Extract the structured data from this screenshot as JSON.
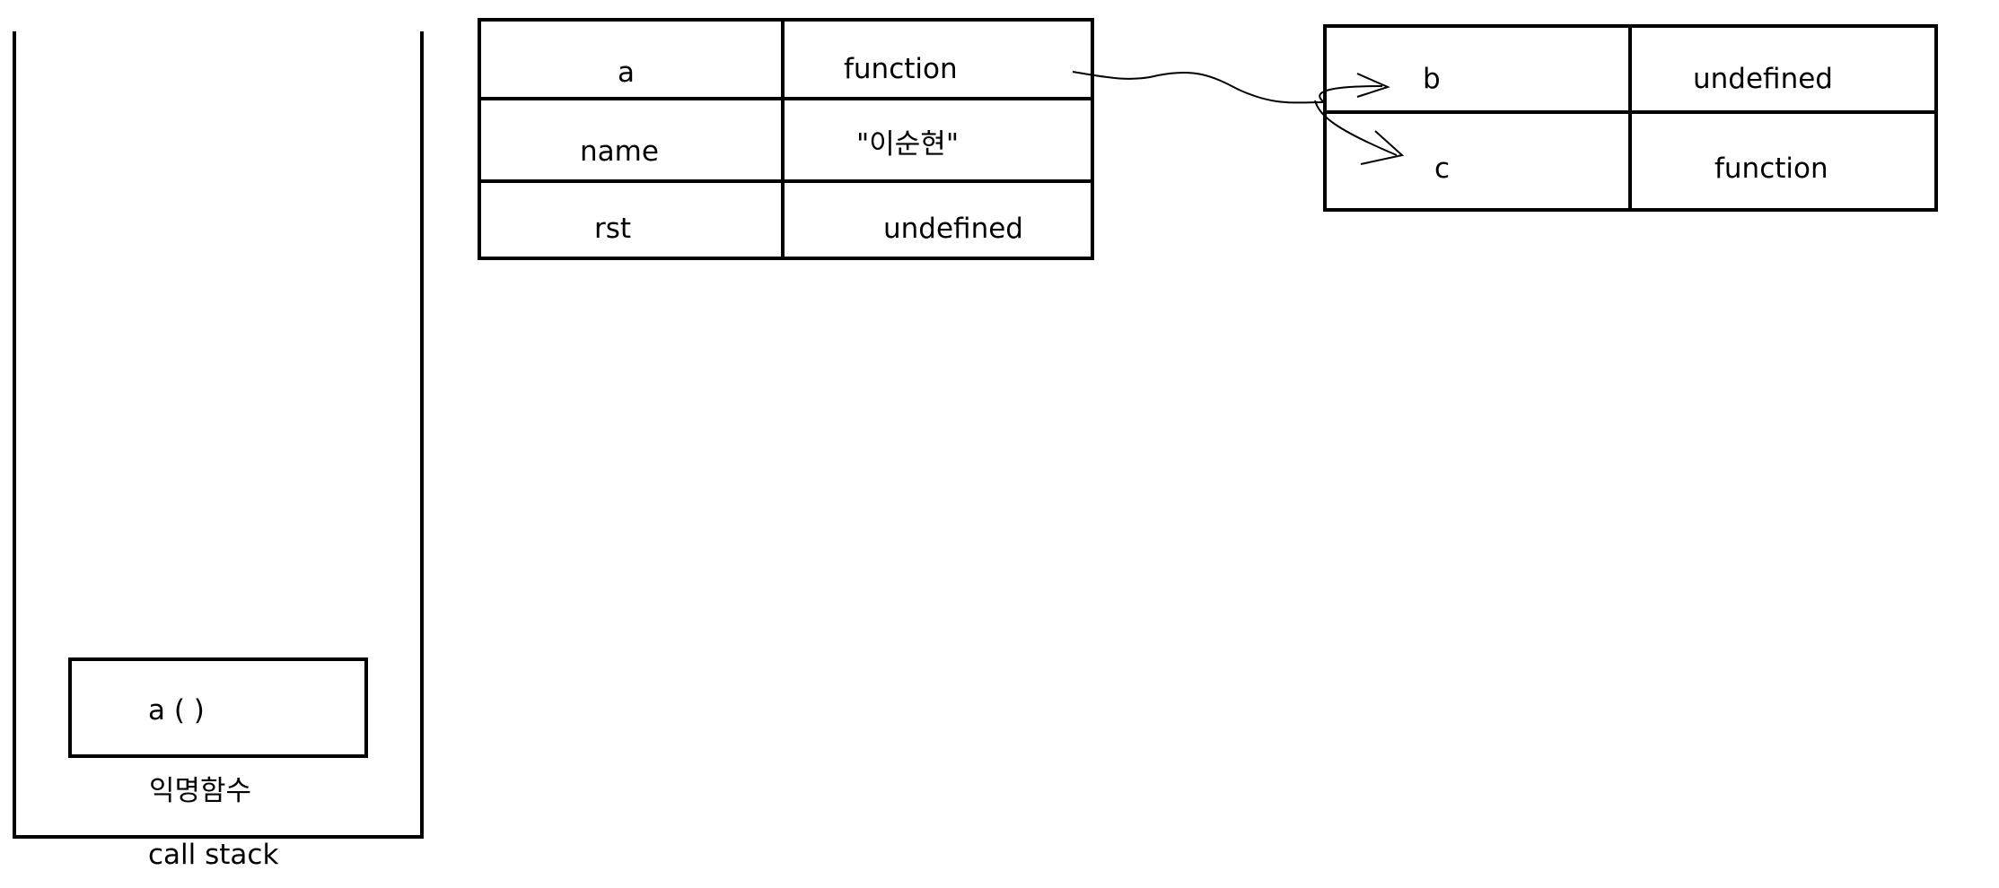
{
  "call_stack": {
    "caption": "call stack",
    "frames": [
      {
        "label": "a ( )"
      },
      {
        "label": "익명함수"
      }
    ]
  },
  "global_table": {
    "rows": [
      {
        "key": "a",
        "value": "function"
      },
      {
        "key": "name",
        "value": "\"이순현\""
      },
      {
        "key": "rst",
        "value": "undefined"
      }
    ]
  },
  "function_a_table": {
    "rows": [
      {
        "key": "b",
        "value": "undefined"
      },
      {
        "key": "c",
        "value": "function"
      }
    ]
  }
}
